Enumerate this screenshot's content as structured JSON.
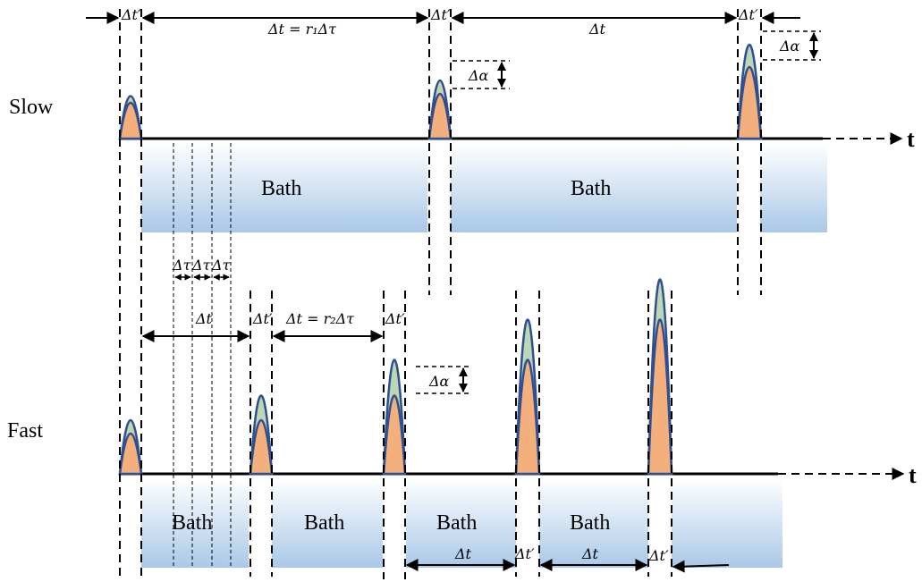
{
  "rows": {
    "slow": {
      "label": "Slow"
    },
    "fast": {
      "label": "Fast"
    }
  },
  "axis": {
    "time_symbol": "t"
  },
  "bath": {
    "label": "Bath"
  },
  "annotations": {
    "dt": "Δt",
    "dt_prime": "Δt′",
    "dt_eq_r1": "Δt = r₁Δτ",
    "dt_eq_r2": "Δt = r₂Δτ",
    "dalpha": "Δα",
    "dtau": "Δτ"
  },
  "colors": {
    "pulse_outer": "#bcd7b6",
    "pulse_inner": "#f3b07c",
    "pulse_stroke": "#2f4f8f",
    "bath_top": "#ffffff",
    "bath_bottom": "#a9c8e8"
  }
}
